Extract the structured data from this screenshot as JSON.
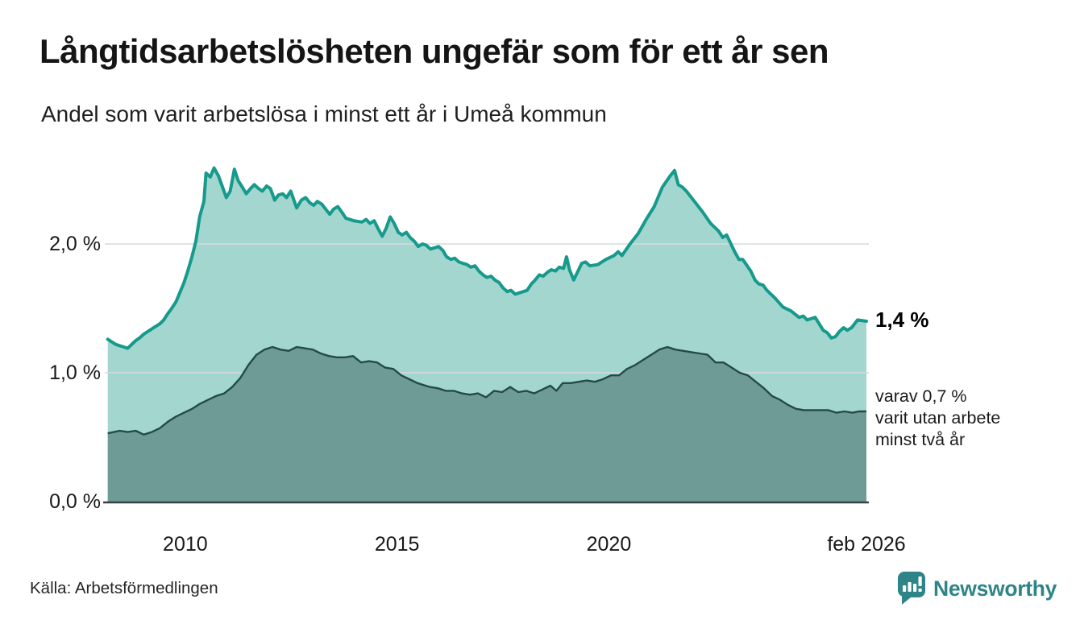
{
  "header": {
    "title": "Långtidsarbetslösheten ungefär som för ett år sen",
    "subtitle": "Andel som varit arbetslösa i minst ett år i Umeå kommun"
  },
  "annotations": {
    "latest_total": "1,4 %",
    "two_year_lines": [
      "varav 0,7 %",
      "varit utan arbete",
      "minst två år"
    ]
  },
  "source": "Källa: Arbetsförmedlingen",
  "branding": {
    "name": "Newsworthy",
    "color": "#2e8487"
  },
  "colors": {
    "line_total": "#169a8c",
    "fill_total": "#a3d6cf",
    "line_two_year": "#234b46",
    "fill_two_year": "#6f9b97",
    "gridline": "#d9d9d9",
    "baseline": "#394145",
    "background": "#ffffff"
  },
  "chart_data": {
    "type": "area",
    "title": "Långtidsarbetslösheten ungefär som för ett år sen",
    "subtitle": "Andel som varit arbetslösa i minst ett år i Umeå kommun",
    "unit": "percent",
    "xlim": [
      2008.1,
      2026.08
    ],
    "ylim": [
      0,
      2.8
    ],
    "grid_values": [
      1.0,
      2.0
    ],
    "y_ticks": [
      {
        "label": "0,0 %",
        "v": 0
      },
      {
        "label": "1,0 %",
        "v": 1
      },
      {
        "label": "2,0 %",
        "v": 2
      }
    ],
    "x_ticks": [
      {
        "label": "2010",
        "t": 2010
      },
      {
        "label": "2015",
        "t": 2015
      },
      {
        "label": "2020",
        "t": 2020
      },
      {
        "label": "feb 2026",
        "t": 2026.08
      }
    ],
    "series": [
      {
        "name": "Andel arbetslösa minst ett år",
        "latest_label": "1,4 %",
        "points": [
          [
            2008.17,
            1.26
          ],
          [
            2008.36,
            1.22
          ],
          [
            2008.55,
            1.2
          ],
          [
            2008.64,
            1.19
          ],
          [
            2008.83,
            1.25
          ],
          [
            2008.92,
            1.27
          ],
          [
            2009.02,
            1.3
          ],
          [
            2009.21,
            1.34
          ],
          [
            2009.3,
            1.36
          ],
          [
            2009.4,
            1.38
          ],
          [
            2009.49,
            1.41
          ],
          [
            2009.59,
            1.46
          ],
          [
            2009.68,
            1.5
          ],
          [
            2009.78,
            1.55
          ],
          [
            2009.87,
            1.62
          ],
          [
            2009.97,
            1.7
          ],
          [
            2010.06,
            1.79
          ],
          [
            2010.15,
            1.89
          ],
          [
            2010.25,
            2.02
          ],
          [
            2010.34,
            2.21
          ],
          [
            2010.44,
            2.33
          ],
          [
            2010.49,
            2.55
          ],
          [
            2010.59,
            2.52
          ],
          [
            2010.68,
            2.59
          ],
          [
            2010.78,
            2.53
          ],
          [
            2010.87,
            2.45
          ],
          [
            2010.97,
            2.36
          ],
          [
            2011.06,
            2.41
          ],
          [
            2011.16,
            2.58
          ],
          [
            2011.25,
            2.49
          ],
          [
            2011.35,
            2.44
          ],
          [
            2011.44,
            2.39
          ],
          [
            2011.54,
            2.43
          ],
          [
            2011.63,
            2.46
          ],
          [
            2011.73,
            2.43
          ],
          [
            2011.82,
            2.41
          ],
          [
            2011.92,
            2.45
          ],
          [
            2012.01,
            2.43
          ],
          [
            2012.11,
            2.34
          ],
          [
            2012.2,
            2.38
          ],
          [
            2012.3,
            2.39
          ],
          [
            2012.39,
            2.36
          ],
          [
            2012.49,
            2.41
          ],
          [
            2012.63,
            2.28
          ],
          [
            2012.74,
            2.34
          ],
          [
            2012.84,
            2.36
          ],
          [
            2012.94,
            2.32
          ],
          [
            2013.03,
            2.3
          ],
          [
            2013.12,
            2.33
          ],
          [
            2013.22,
            2.31
          ],
          [
            2013.41,
            2.23
          ],
          [
            2013.5,
            2.27
          ],
          [
            2013.6,
            2.29
          ],
          [
            2013.69,
            2.25
          ],
          [
            2013.79,
            2.2
          ],
          [
            2013.98,
            2.18
          ],
          [
            2014.17,
            2.17
          ],
          [
            2014.27,
            2.19
          ],
          [
            2014.36,
            2.16
          ],
          [
            2014.46,
            2.18
          ],
          [
            2014.55,
            2.12
          ],
          [
            2014.65,
            2.06
          ],
          [
            2014.74,
            2.12
          ],
          [
            2014.84,
            2.21
          ],
          [
            2014.93,
            2.16
          ],
          [
            2015.03,
            2.09
          ],
          [
            2015.12,
            2.07
          ],
          [
            2015.22,
            2.09
          ],
          [
            2015.31,
            2.05
          ],
          [
            2015.41,
            2.02
          ],
          [
            2015.5,
            1.98
          ],
          [
            2015.6,
            2.0
          ],
          [
            2015.69,
            1.99
          ],
          [
            2015.79,
            1.96
          ],
          [
            2015.98,
            1.98
          ],
          [
            2016.08,
            1.95
          ],
          [
            2016.17,
            1.9
          ],
          [
            2016.27,
            1.88
          ],
          [
            2016.36,
            1.89
          ],
          [
            2016.46,
            1.86
          ],
          [
            2016.55,
            1.85
          ],
          [
            2016.65,
            1.84
          ],
          [
            2016.74,
            1.82
          ],
          [
            2016.84,
            1.83
          ],
          [
            2016.93,
            1.79
          ],
          [
            2017.03,
            1.76
          ],
          [
            2017.12,
            1.74
          ],
          [
            2017.22,
            1.75
          ],
          [
            2017.31,
            1.72
          ],
          [
            2017.41,
            1.7
          ],
          [
            2017.5,
            1.66
          ],
          [
            2017.6,
            1.63
          ],
          [
            2017.69,
            1.64
          ],
          [
            2017.79,
            1.61
          ],
          [
            2017.88,
            1.62
          ],
          [
            2017.98,
            1.63
          ],
          [
            2018.07,
            1.64
          ],
          [
            2018.17,
            1.69
          ],
          [
            2018.26,
            1.72
          ],
          [
            2018.36,
            1.76
          ],
          [
            2018.45,
            1.75
          ],
          [
            2018.55,
            1.78
          ],
          [
            2018.64,
            1.8
          ],
          [
            2018.74,
            1.79
          ],
          [
            2018.83,
            1.82
          ],
          [
            2018.93,
            1.81
          ],
          [
            2019.0,
            1.9
          ],
          [
            2019.07,
            1.8
          ],
          [
            2019.17,
            1.72
          ],
          [
            2019.36,
            1.85
          ],
          [
            2019.45,
            1.86
          ],
          [
            2019.55,
            1.83
          ],
          [
            2019.74,
            1.84
          ],
          [
            2019.93,
            1.88
          ],
          [
            2020.12,
            1.91
          ],
          [
            2020.22,
            1.94
          ],
          [
            2020.31,
            1.91
          ],
          [
            2020.5,
            2.0
          ],
          [
            2020.69,
            2.08
          ],
          [
            2020.88,
            2.19
          ],
          [
            2021.07,
            2.29
          ],
          [
            2021.26,
            2.44
          ],
          [
            2021.45,
            2.53
          ],
          [
            2021.55,
            2.57
          ],
          [
            2021.64,
            2.46
          ],
          [
            2021.74,
            2.44
          ],
          [
            2021.83,
            2.41
          ],
          [
            2022.02,
            2.33
          ],
          [
            2022.21,
            2.25
          ],
          [
            2022.4,
            2.16
          ],
          [
            2022.59,
            2.1
          ],
          [
            2022.69,
            2.05
          ],
          [
            2022.78,
            2.07
          ],
          [
            2022.97,
            1.94
          ],
          [
            2023.07,
            1.88
          ],
          [
            2023.16,
            1.88
          ],
          [
            2023.35,
            1.79
          ],
          [
            2023.45,
            1.72
          ],
          [
            2023.54,
            1.69
          ],
          [
            2023.64,
            1.68
          ],
          [
            2023.73,
            1.64
          ],
          [
            2023.92,
            1.58
          ],
          [
            2024.11,
            1.51
          ],
          [
            2024.3,
            1.48
          ],
          [
            2024.49,
            1.43
          ],
          [
            2024.59,
            1.44
          ],
          [
            2024.68,
            1.41
          ],
          [
            2024.87,
            1.43
          ],
          [
            2025.06,
            1.33
          ],
          [
            2025.16,
            1.31
          ],
          [
            2025.25,
            1.27
          ],
          [
            2025.35,
            1.28
          ],
          [
            2025.44,
            1.32
          ],
          [
            2025.54,
            1.35
          ],
          [
            2025.63,
            1.33
          ],
          [
            2025.73,
            1.35
          ],
          [
            2025.87,
            1.41
          ],
          [
            2026.08,
            1.4
          ]
        ]
      },
      {
        "name": "varav utan arbete minst två år",
        "latest_label": "0,7 %",
        "points": [
          [
            2008.17,
            0.53
          ],
          [
            2008.45,
            0.55
          ],
          [
            2008.64,
            0.54
          ],
          [
            2008.83,
            0.55
          ],
          [
            2009.02,
            0.52
          ],
          [
            2009.21,
            0.54
          ],
          [
            2009.4,
            0.57
          ],
          [
            2009.59,
            0.62
          ],
          [
            2009.78,
            0.66
          ],
          [
            2009.97,
            0.69
          ],
          [
            2010.16,
            0.72
          ],
          [
            2010.35,
            0.76
          ],
          [
            2010.54,
            0.79
          ],
          [
            2010.73,
            0.82
          ],
          [
            2010.92,
            0.84
          ],
          [
            2011.11,
            0.89
          ],
          [
            2011.3,
            0.96
          ],
          [
            2011.49,
            1.06
          ],
          [
            2011.68,
            1.14
          ],
          [
            2011.87,
            1.18
          ],
          [
            2012.06,
            1.2
          ],
          [
            2012.25,
            1.18
          ],
          [
            2012.44,
            1.17
          ],
          [
            2012.63,
            1.2
          ],
          [
            2012.82,
            1.19
          ],
          [
            2013.01,
            1.18
          ],
          [
            2013.2,
            1.15
          ],
          [
            2013.39,
            1.13
          ],
          [
            2013.58,
            1.12
          ],
          [
            2013.77,
            1.12
          ],
          [
            2013.96,
            1.13
          ],
          [
            2014.15,
            1.08
          ],
          [
            2014.34,
            1.09
          ],
          [
            2014.53,
            1.08
          ],
          [
            2014.72,
            1.04
          ],
          [
            2014.91,
            1.03
          ],
          [
            2015.1,
            0.98
          ],
          [
            2015.29,
            0.95
          ],
          [
            2015.48,
            0.92
          ],
          [
            2015.77,
            0.89
          ],
          [
            2015.96,
            0.88
          ],
          [
            2016.15,
            0.86
          ],
          [
            2016.34,
            0.86
          ],
          [
            2016.53,
            0.84
          ],
          [
            2016.72,
            0.83
          ],
          [
            2016.91,
            0.84
          ],
          [
            2017.1,
            0.81
          ],
          [
            2017.29,
            0.86
          ],
          [
            2017.48,
            0.85
          ],
          [
            2017.67,
            0.89
          ],
          [
            2017.86,
            0.85
          ],
          [
            2018.05,
            0.86
          ],
          [
            2018.24,
            0.84
          ],
          [
            2018.43,
            0.87
          ],
          [
            2018.62,
            0.9
          ],
          [
            2018.76,
            0.86
          ],
          [
            2018.91,
            0.92
          ],
          [
            2019.1,
            0.92
          ],
          [
            2019.29,
            0.93
          ],
          [
            2019.48,
            0.94
          ],
          [
            2019.67,
            0.93
          ],
          [
            2019.86,
            0.95
          ],
          [
            2020.05,
            0.98
          ],
          [
            2020.24,
            0.98
          ],
          [
            2020.43,
            1.03
          ],
          [
            2020.62,
            1.06
          ],
          [
            2020.81,
            1.1
          ],
          [
            2021.0,
            1.14
          ],
          [
            2021.19,
            1.18
          ],
          [
            2021.38,
            1.2
          ],
          [
            2021.57,
            1.18
          ],
          [
            2021.76,
            1.17
          ],
          [
            2021.95,
            1.16
          ],
          [
            2022.14,
            1.15
          ],
          [
            2022.33,
            1.14
          ],
          [
            2022.52,
            1.08
          ],
          [
            2022.71,
            1.08
          ],
          [
            2022.9,
            1.04
          ],
          [
            2023.09,
            1.0
          ],
          [
            2023.28,
            0.98
          ],
          [
            2023.47,
            0.93
          ],
          [
            2023.66,
            0.88
          ],
          [
            2023.85,
            0.82
          ],
          [
            2024.04,
            0.79
          ],
          [
            2024.23,
            0.75
          ],
          [
            2024.42,
            0.72
          ],
          [
            2024.61,
            0.71
          ],
          [
            2024.8,
            0.71
          ],
          [
            2024.99,
            0.71
          ],
          [
            2025.18,
            0.71
          ],
          [
            2025.37,
            0.69
          ],
          [
            2025.56,
            0.7
          ],
          [
            2025.75,
            0.69
          ],
          [
            2025.9,
            0.7
          ],
          [
            2026.08,
            0.7
          ]
        ]
      }
    ],
    "legend_position": "right-annotations",
    "grid": true
  }
}
